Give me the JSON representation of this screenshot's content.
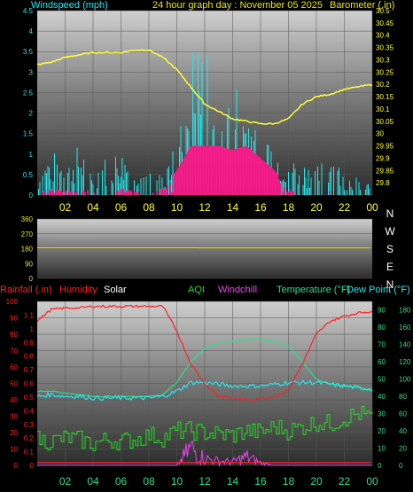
{
  "header": {
    "left": "Windspeed (mph)",
    "center": "24 hour graph day : November 05 2025",
    "right": "Barometer (.in)"
  },
  "legend": {
    "rainfall": "Rainfall (.in)",
    "humidity": "Humidity",
    "solar": "Solar",
    "aqi": "AQI",
    "windchill": "Windchill",
    "temperature": "Temperature (°F)",
    "dewpoint": "Dew Point (°F)"
  },
  "colors": {
    "wind": "#22e8ee",
    "gust": "#ff1a8c",
    "barometer": "#ffff33",
    "direction": "#e6e61a",
    "rainfall": "#ff2020",
    "humidity": "#ff2020",
    "solar": "#ffffff",
    "aqi": "#22dd22",
    "windchill": "#ee44ee",
    "temperature": "#2ddf8a",
    "dewpoint": "#22e8ee"
  },
  "chart_data": [
    {
      "type": "line",
      "name": "wind-barometer",
      "x_hours": [
        0,
        1,
        2,
        3,
        4,
        5,
        6,
        7,
        8,
        9,
        10,
        11,
        12,
        13,
        14,
        15,
        16,
        17,
        18,
        19,
        20,
        21,
        22,
        23,
        24
      ],
      "x_tick_labels": [
        "02",
        "04",
        "06",
        "08",
        "10",
        "12",
        "14",
        "16",
        "18",
        "20",
        "22",
        "00"
      ],
      "left_axis": {
        "ylim": [
          0,
          4.5
        ],
        "ticks": [
          "0",
          "0.5",
          "1",
          "1.5",
          "2",
          "2.5",
          "3",
          "3.5",
          "4",
          "4.5"
        ]
      },
      "right_axis": {
        "ylim": [
          29.75,
          30.5
        ],
        "ticks": [
          "29.8",
          "29.85",
          "29.9",
          "29.95",
          "30",
          "30.05",
          "30.1",
          "30.15",
          "30.2",
          "30.25",
          "30.3",
          "30.35",
          "30.4",
          "30.45",
          "30.5"
        ]
      },
      "series": [
        {
          "name": "Barometer",
          "axis": "right",
          "values": [
            30.28,
            30.29,
            30.31,
            30.32,
            30.33,
            30.33,
            30.33,
            30.34,
            30.34,
            30.31,
            30.26,
            30.19,
            30.12,
            30.09,
            30.06,
            30.05,
            30.04,
            30.04,
            30.06,
            30.12,
            30.15,
            30.16,
            30.18,
            30.19,
            30.2
          ]
        },
        {
          "name": "Windspeed",
          "axis": "left",
          "values": [
            0.3,
            0.8,
            0.6,
            0.9,
            0.5,
            0.7,
            0.8,
            0.6,
            0.4,
            0.5,
            0.9,
            2.6,
            3.0,
            2.4,
            2.1,
            1.8,
            1.5,
            1.0,
            0.7,
            0.6,
            0.5,
            0.8,
            0.4,
            0.3,
            0.2
          ]
        },
        {
          "name": "Gust",
          "axis": "left",
          "values": [
            0.0,
            0.2,
            0.1,
            0.3,
            0.1,
            0.0,
            0.2,
            0.1,
            0.0,
            0.2,
            0.6,
            1.2,
            1.2,
            1.2,
            1.1,
            1.2,
            0.9,
            0.6,
            0.2,
            0.0,
            0.0,
            0.1,
            0.0,
            0.0,
            0.0
          ]
        }
      ]
    },
    {
      "type": "line",
      "name": "wind-direction",
      "ylim": [
        0,
        360
      ],
      "y_tick_labels": [
        "0",
        "90",
        "180",
        "270",
        "360"
      ],
      "right_labels": [
        "N",
        "W",
        "S",
        "E",
        "N"
      ],
      "series": [
        {
          "name": "Direction",
          "values": [
            185,
            185,
            185,
            185,
            185,
            185,
            185,
            185,
            185,
            185,
            185,
            185,
            184,
            184,
            184,
            184,
            184,
            184,
            184,
            184,
            184,
            184,
            184,
            184,
            184
          ]
        }
      ]
    },
    {
      "type": "line",
      "name": "temp-humidity",
      "left_axis": {
        "ylim": [
          0,
          100
        ],
        "ticks": [
          "0",
          "10",
          "20",
          "30",
          "40",
          "50",
          "60",
          "70",
          "80",
          "90",
          "100"
        ]
      },
      "rain_axis": {
        "ylim": [
          0,
          1.2
        ],
        "ticks": [
          "0",
          "0.1",
          "0.2",
          "0.3",
          "0.4",
          "0.5",
          "0.6",
          "0.7",
          "0.8",
          "0.9",
          "1",
          "1.1"
        ]
      },
      "temp_axis": {
        "ylim": [
          0,
          95
        ],
        "ticks": [
          "0",
          "10",
          "20",
          "30",
          "40",
          "50",
          "60",
          "70",
          "80",
          "90"
        ]
      },
      "aqi_axis": {
        "ylim": [
          0,
          190
        ],
        "ticks": [
          "0",
          "20",
          "40",
          "60",
          "80",
          "100",
          "120",
          "140",
          "160",
          "180"
        ]
      },
      "series": [
        {
          "name": "Humidity",
          "axis": "left",
          "values": [
            88,
            95,
            96,
            96,
            97,
            97,
            97,
            97,
            97,
            97,
            82,
            62,
            50,
            42,
            41,
            40,
            41,
            42,
            46,
            62,
            80,
            88,
            91,
            93,
            94
          ]
        },
        {
          "name": "Temperature",
          "axis": "temp",
          "values": [
            43,
            43,
            42,
            41,
            40,
            40,
            40,
            40,
            40,
            41,
            48,
            60,
            68,
            71,
            72,
            73,
            73,
            72,
            69,
            60,
            50,
            47,
            46,
            45,
            44
          ]
        },
        {
          "name": "Dew Point",
          "axis": "temp",
          "values": [
            40,
            41,
            40,
            40,
            39,
            39,
            39,
            39,
            39,
            40,
            43,
            48,
            48,
            47,
            46,
            46,
            46,
            47,
            48,
            48,
            48,
            47,
            46,
            45,
            44
          ]
        },
        {
          "name": "AQI",
          "axis": "aqi",
          "values": [
            30,
            28,
            32,
            30,
            25,
            30,
            28,
            30,
            35,
            32,
            40,
            40,
            38,
            36,
            35,
            40,
            38,
            45,
            40,
            45,
            50,
            48,
            55,
            60,
            55
          ]
        },
        {
          "name": "Windchill",
          "axis": "temp",
          "values": [
            0,
            0,
            0,
            0,
            0,
            0,
            0,
            0,
            0,
            0,
            0,
            20,
            8,
            5,
            4,
            10,
            3,
            0,
            0,
            0,
            0,
            0,
            0,
            0,
            0
          ]
        },
        {
          "name": "Rainfall",
          "axis": "rain",
          "values": [
            0.02,
            0.02,
            0.02,
            0.02,
            0.02,
            0.02,
            0.02,
            0.02,
            0.02,
            0.02,
            0.02,
            0.02,
            0.02,
            0.02,
            0.02,
            0.02,
            0.02,
            0.02,
            0.02,
            0.02,
            0.02,
            0.02,
            0.02,
            0.02,
            0.02
          ]
        }
      ]
    }
  ]
}
